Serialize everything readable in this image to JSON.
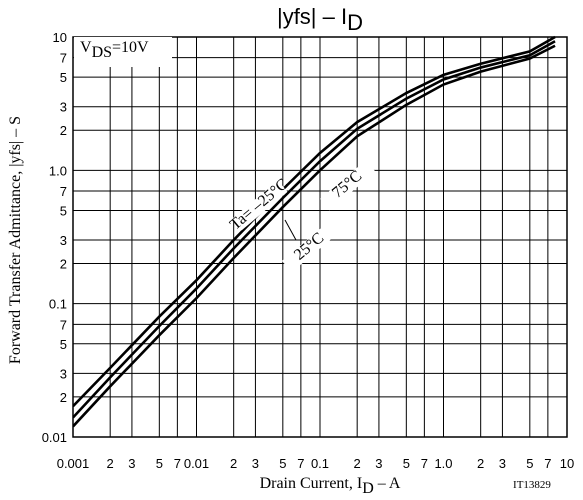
{
  "chart_data": {
    "type": "line",
    "title": {
      "main": "|yfs| – I",
      "sub": "D"
    },
    "x_label": {
      "main": "Drain Current, I",
      "sub": "D",
      "rest": " – A"
    },
    "y_label": "Forward Transfer Admittance, |yfs| – S",
    "condition": {
      "main": "V",
      "sub": "DS",
      "rest": "=10V"
    },
    "figure_id": "IT13829",
    "log_x": true,
    "log_y": true,
    "grid": true,
    "xlim": [
      0.001,
      10
    ],
    "ylim": [
      0.01,
      10
    ],
    "xticks": [
      0.001,
      {
        "value": 0.002,
        "label": "2"
      },
      {
        "value": 0.003,
        "label": "3"
      },
      {
        "value": 0.005,
        "label": "5"
      },
      {
        "value": 0.007,
        "label": "7"
      },
      0.01,
      {
        "value": 0.02,
        "label": "2"
      },
      {
        "value": 0.03,
        "label": "3"
      },
      {
        "value": 0.05,
        "label": "5"
      },
      {
        "value": 0.07,
        "label": "7"
      },
      0.1,
      {
        "value": 0.2,
        "label": "2"
      },
      {
        "value": 0.3,
        "label": "3"
      },
      {
        "value": 0.5,
        "label": "5"
      },
      {
        "value": 0.7,
        "label": "7"
      },
      {
        "value": 1,
        "label": "1.0"
      },
      2,
      3,
      5,
      7,
      10
    ],
    "yticks": [
      0.01,
      {
        "value": 0.02,
        "label": "2"
      },
      {
        "value": 0.03,
        "label": "3"
      },
      {
        "value": 0.05,
        "label": "5"
      },
      {
        "value": 0.07,
        "label": "7"
      },
      0.1,
      {
        "value": 0.2,
        "label": "2"
      },
      {
        "value": 0.3,
        "label": "3"
      },
      {
        "value": 0.5,
        "label": "5"
      },
      {
        "value": 0.7,
        "label": "7"
      },
      {
        "value": 1,
        "label": "1.0"
      },
      2,
      3,
      5,
      7,
      10
    ],
    "x": [
      0.001,
      0.002,
      0.005,
      0.01,
      0.02,
      0.05,
      0.1,
      0.2,
      0.5,
      1,
      2,
      5,
      8
    ],
    "series": [
      {
        "name": "Ta= –25°C",
        "color": "#000000",
        "values": [
          0.017,
          0.033,
          0.08,
          0.15,
          0.3,
          0.72,
          1.35,
          2.3,
          3.8,
          5.2,
          6.3,
          7.8,
          10
        ]
      },
      {
        "name": "25°C",
        "color": "#000000",
        "values": [
          0.014,
          0.028,
          0.068,
          0.13,
          0.26,
          0.62,
          1.17,
          2.05,
          3.45,
          4.8,
          5.9,
          7.3,
          9.3
        ]
      },
      {
        "name": "75°C",
        "color": "#000000",
        "values": [
          0.012,
          0.024,
          0.058,
          0.11,
          0.22,
          0.53,
          1.0,
          1.8,
          3.1,
          4.4,
          5.5,
          6.9,
          8.6
        ]
      }
    ]
  }
}
